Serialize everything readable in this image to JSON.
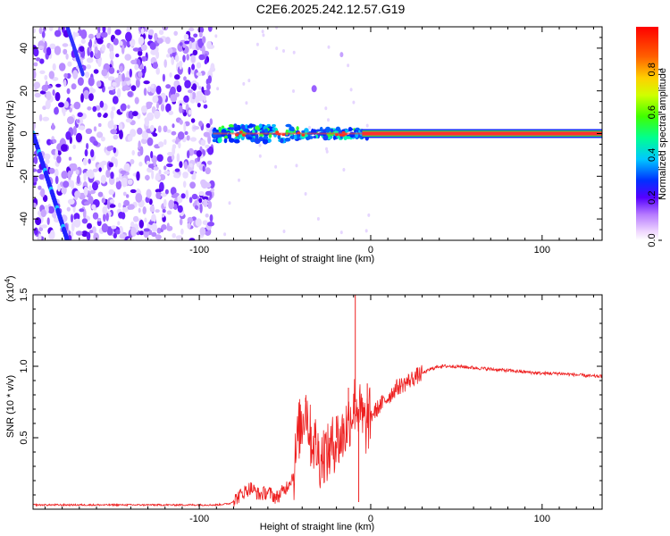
{
  "title": "C2E6.2025.242.12.57.G19",
  "chart_data": [
    {
      "type": "heatmap",
      "name": "spectrogram",
      "xlabel": "Height of straight line (km)",
      "ylabel": "Frequency (Hz)",
      "xlim": [
        -197,
        135
      ],
      "ylim": [
        -50,
        50
      ],
      "xticks": [
        -100,
        0,
        100
      ],
      "xtick_labels": [
        "-100",
        "0",
        "100"
      ],
      "yticks": [
        -40,
        -20,
        0,
        20,
        40
      ],
      "ytick_labels": [
        "-40",
        "-20",
        "0",
        "20",
        "40"
      ],
      "noise_region_x": [
        -197,
        -92
      ],
      "dominant_tone": {
        "frequency_hz": 0,
        "x_start": -92,
        "x_end": 135
      },
      "diagonal_trace": {
        "from": [
          -197,
          0
        ],
        "to": [
          -177,
          -50
        ]
      },
      "colorbar": {
        "label": "Normalized spectral amplitude",
        "range": [
          0.0,
          1.0
        ],
        "ticks": [
          0.0,
          0.2,
          0.4,
          0.6,
          0.8
        ],
        "tick_labels": [
          "0.0",
          "0.2",
          "0.4",
          "0.6",
          "0.8"
        ]
      }
    },
    {
      "type": "line",
      "name": "snr",
      "xlabel": "Height of straight line (km)",
      "ylabel": "SNR (10 * v/v)",
      "multiplier_label": "(x10",
      "multiplier_exponent": "4",
      "xlim": [
        -197,
        135
      ],
      "ylim": [
        0,
        1.5
      ],
      "xticks": [
        -100,
        0,
        100
      ],
      "xtick_labels": [
        "-100",
        "0",
        "100"
      ],
      "yticks": [
        0.5,
        1.0,
        1.5
      ],
      "ytick_labels": [
        "0.5",
        "1.0",
        "1.5"
      ],
      "series_color": "#ee2020",
      "x": [
        -197,
        -150,
        -110,
        -90,
        -82,
        -78,
        -74,
        -70,
        -65,
        -60,
        -55,
        -50,
        -45,
        -42,
        -40,
        -38,
        -35,
        -32,
        -30,
        -27,
        -25,
        -22,
        -20,
        -18,
        -15,
        -13,
        -11,
        -9,
        -7,
        -5,
        -3,
        0,
        5,
        10,
        15,
        20,
        25,
        30,
        35,
        40,
        45,
        50,
        60,
        70,
        80,
        90,
        100,
        110,
        120,
        130,
        135
      ],
      "y": [
        0.03,
        0.03,
        0.03,
        0.03,
        0.04,
        0.08,
        0.12,
        0.15,
        0.1,
        0.12,
        0.08,
        0.14,
        0.24,
        0.55,
        0.6,
        0.75,
        0.5,
        0.45,
        0.35,
        0.4,
        0.38,
        0.45,
        0.5,
        0.48,
        0.55,
        0.62,
        0.68,
        0.75,
        0.7,
        0.62,
        0.58,
        0.65,
        0.72,
        0.78,
        0.85,
        0.88,
        0.92,
        0.95,
        0.98,
        1.0,
        1.0,
        1.0,
        0.99,
        0.98,
        0.97,
        0.96,
        0.95,
        0.95,
        0.94,
        0.93,
        0.93
      ],
      "spikes": [
        {
          "x": -42,
          "y": 0.57
        },
        {
          "x": -38,
          "y": 0.78
        },
        {
          "x": -32,
          "y": 0.55
        },
        {
          "x": -24,
          "y": 0.5
        },
        {
          "x": -20,
          "y": 0.65
        },
        {
          "x": -16,
          "y": 0.6
        },
        {
          "x": -13,
          "y": 0.85
        },
        {
          "x": -9,
          "y": 1.5
        },
        {
          "x": -7,
          "y": 0.05
        },
        {
          "x": -5,
          "y": 0.78
        },
        {
          "x": -2,
          "y": 0.88
        }
      ]
    }
  ]
}
